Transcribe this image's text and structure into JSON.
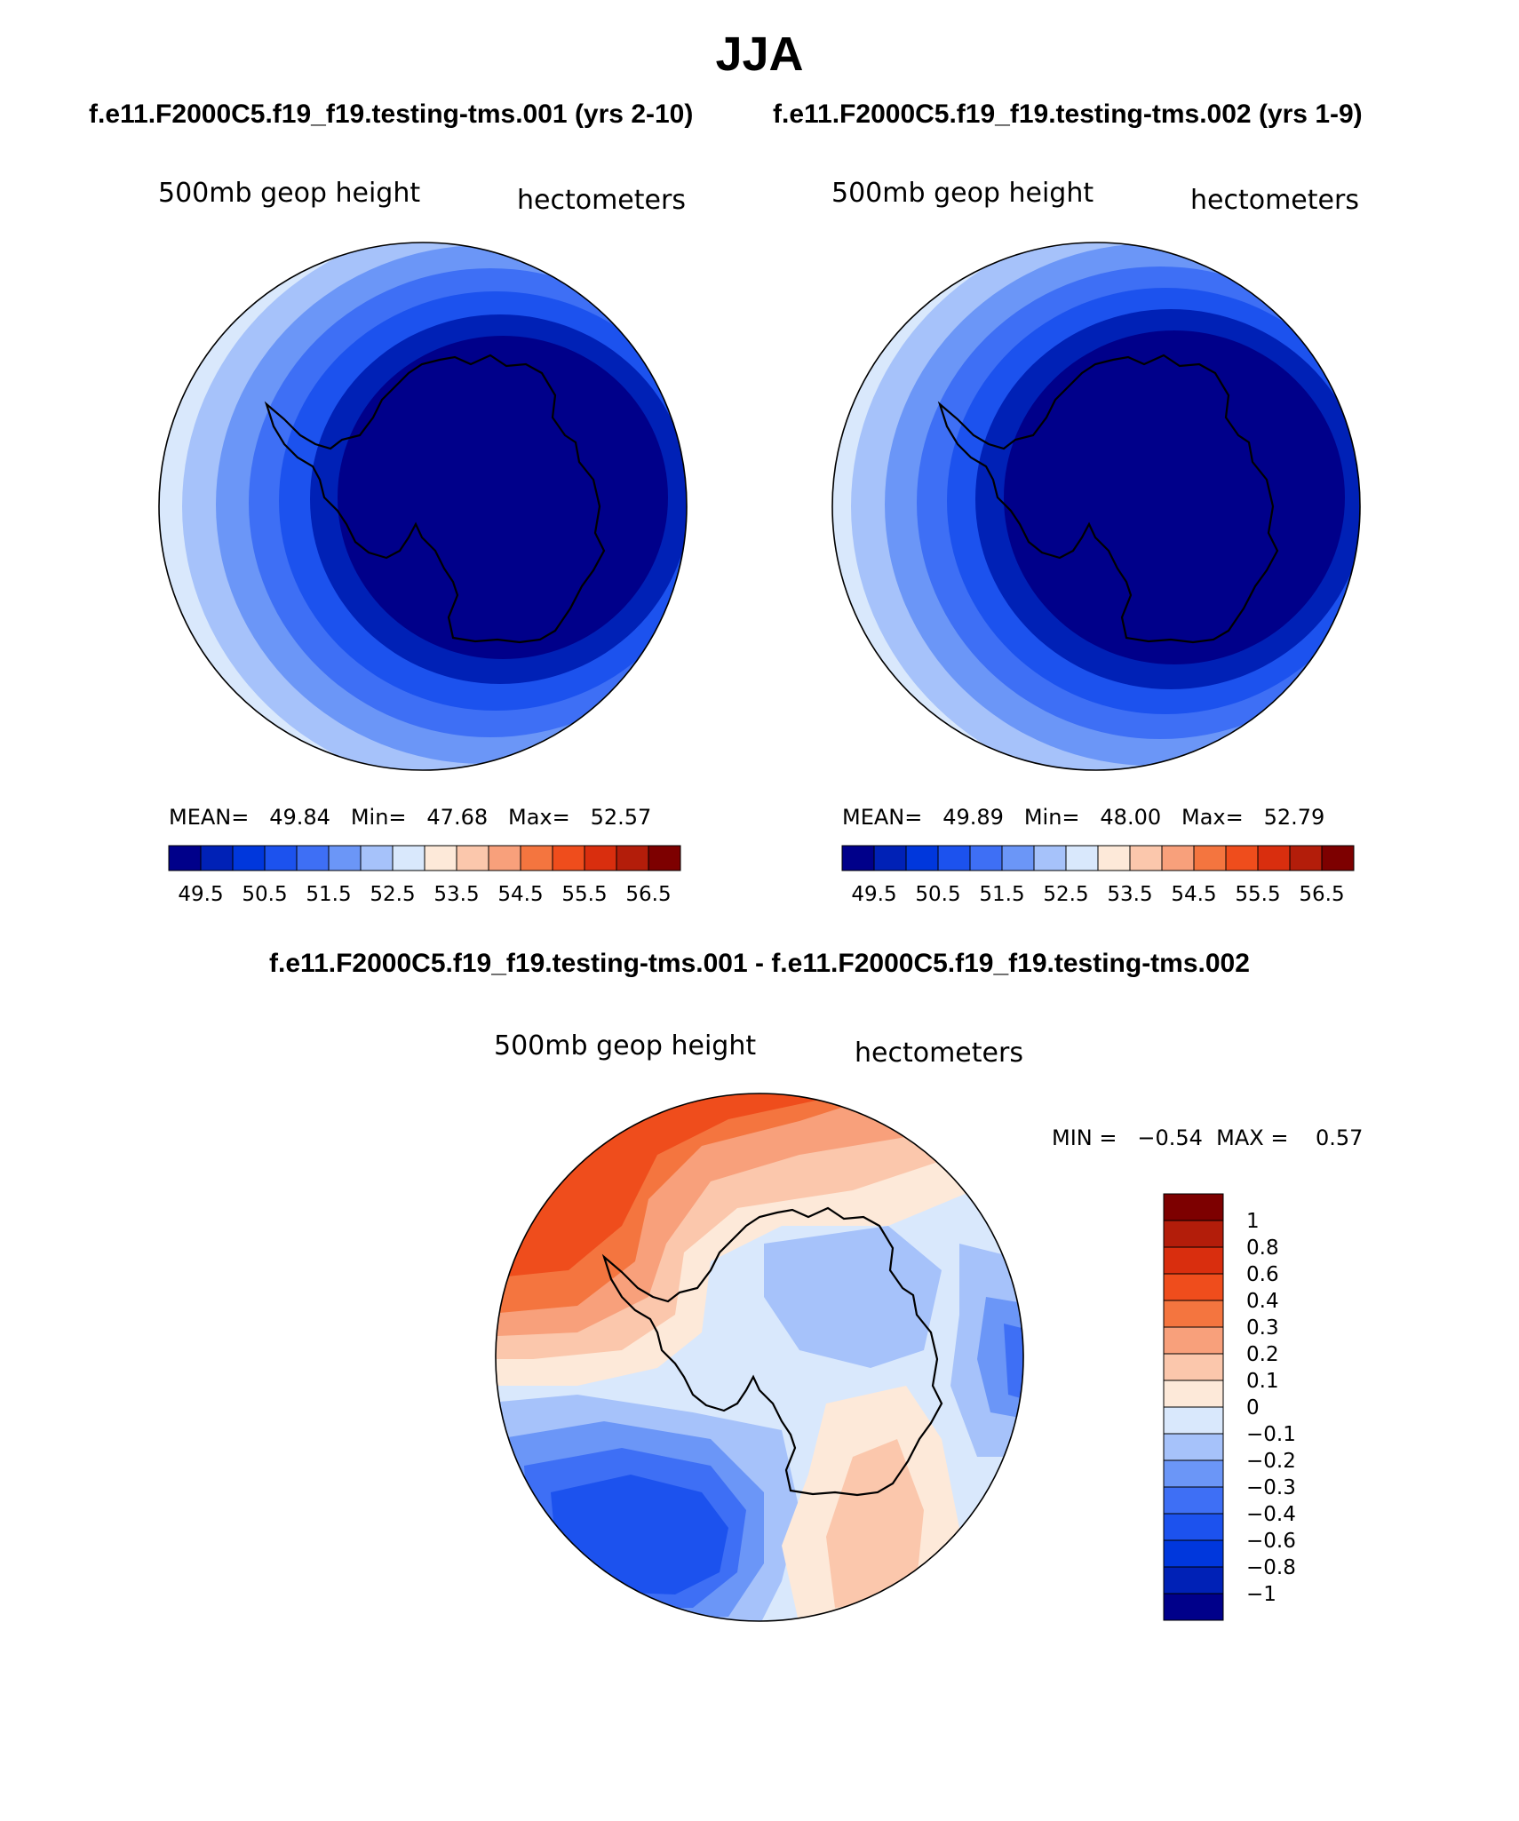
{
  "title": "JJA",
  "case_left": "f.e11.F2000C5.f19_f19.testing-tms.001 (yrs 2-10)",
  "case_right": "f.e11.F2000C5.f19_f19.testing-tms.002 (yrs 1-9)",
  "diff_title": "f.e11.F2000C5.f19_f19.testing-tms.001 - f.e11.F2000C5.f19_f19.testing-tms.002",
  "panels": [
    {
      "variable_label": "500mb geop height",
      "units_label": "hectometers",
      "stats_line": "MEAN=   49.84   Min=   47.68   Max=   52.57",
      "colorbar_ticks": [
        "49.5",
        "50.5",
        "51.5",
        "52.5",
        "53.5",
        "54.5",
        "55.5",
        "56.5"
      ]
    },
    {
      "variable_label": "500mb geop height",
      "units_label": "hectometers",
      "stats_line": "MEAN=   49.89   Min=   48.00   Max=   52.79",
      "colorbar_ticks": [
        "49.5",
        "50.5",
        "51.5",
        "52.5",
        "53.5",
        "54.5",
        "55.5",
        "56.5"
      ]
    },
    {
      "variable_label": "500mb geop height",
      "units_label": "hectometers",
      "stats_line": "MIN =   −0.54  MAX =    0.57",
      "colorbar_ticks": [
        "1",
        "0.8",
        "0.6",
        "0.4",
        "0.3",
        "0.2",
        "0.1",
        "0",
        "−0.1",
        "−0.2",
        "−0.3",
        "−0.4",
        "−0.6",
        "−0.8",
        "−1"
      ]
    }
  ],
  "palette": [
    "#00008a",
    "#0021b6",
    "#0037dc",
    "#1c52ee",
    "#3e6ff5",
    "#6b96f7",
    "#a6c2fa",
    "#d9e8fc",
    "#fde9d9",
    "#fbc7ac",
    "#f8a07b",
    "#f4753f",
    "#ef4d1c",
    "#d92e0e",
    "#b31d0a",
    "#7d0000"
  ]
}
